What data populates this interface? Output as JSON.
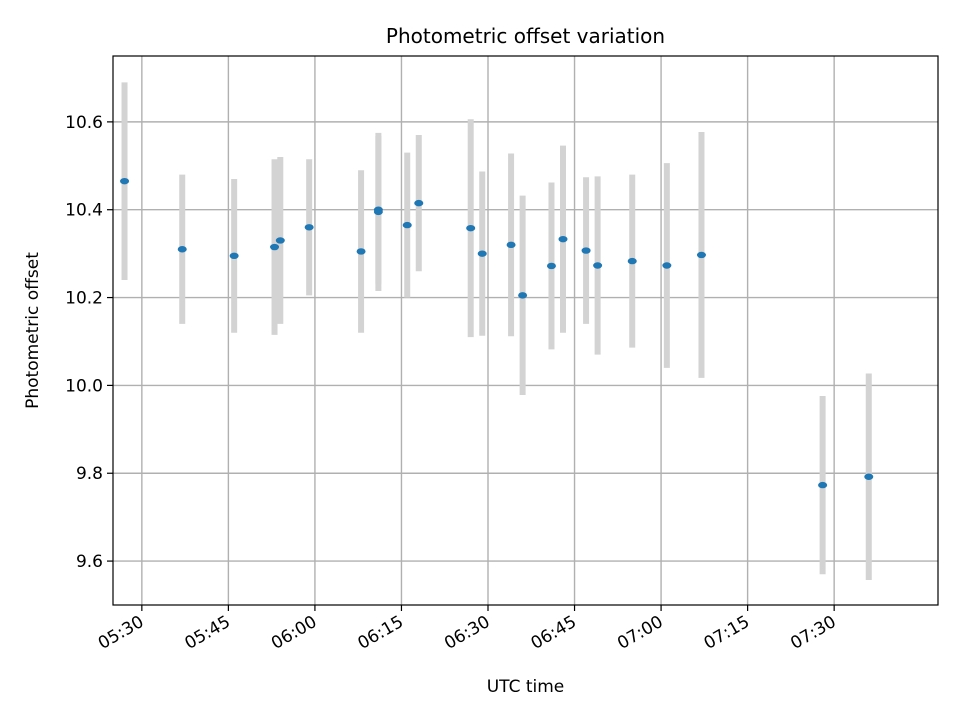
{
  "chart_data": {
    "type": "scatter",
    "title": "Photometric offset variation",
    "xlabel": "UTC time",
    "ylabel": "Photometric offset",
    "x_ticks": [
      "05:30",
      "05:45",
      "06:00",
      "06:15",
      "06:30",
      "06:45",
      "07:00",
      "07:15",
      "07:30"
    ],
    "y_ticks": [
      "9.6",
      "9.8",
      "10.0",
      "10.2",
      "10.4",
      "10.6"
    ],
    "xlim": [
      "05:25",
      "07:48"
    ],
    "ylim": [
      9.5,
      10.75
    ],
    "grid": true,
    "colors": {
      "marker": "#1f77b4",
      "errorbar": "#d3d3d3",
      "grid": "#b0b0b0"
    },
    "points": [
      {
        "x": "05:27",
        "y": 10.465,
        "err": 0.225
      },
      {
        "x": "05:37",
        "y": 10.31,
        "err": 0.17
      },
      {
        "x": "05:46",
        "y": 10.295,
        "err": 0.175
      },
      {
        "x": "05:53",
        "y": 10.315,
        "err": 0.2
      },
      {
        "x": "05:54",
        "y": 10.33,
        "err": 0.19
      },
      {
        "x": "05:59",
        "y": 10.36,
        "err": 0.155
      },
      {
        "x": "06:08",
        "y": 10.305,
        "err": 0.185
      },
      {
        "x": "06:11",
        "y": 10.395,
        "err": 0.18
      },
      {
        "x": "06:11",
        "y": 10.4,
        "err": 0.168
      },
      {
        "x": "06:16",
        "y": 10.365,
        "err": 0.165
      },
      {
        "x": "06:18",
        "y": 10.415,
        "err": 0.155
      },
      {
        "x": "06:27",
        "y": 10.358,
        "err": 0.248
      },
      {
        "x": "06:29",
        "y": 10.3,
        "err": 0.187
      },
      {
        "x": "06:34",
        "y": 10.32,
        "err": 0.208
      },
      {
        "x": "06:36",
        "y": 10.205,
        "err": 0.227
      },
      {
        "x": "06:41",
        "y": 10.272,
        "err": 0.19
      },
      {
        "x": "06:43",
        "y": 10.333,
        "err": 0.213
      },
      {
        "x": "06:47",
        "y": 10.307,
        "err": 0.167
      },
      {
        "x": "06:49",
        "y": 10.273,
        "err": 0.203
      },
      {
        "x": "06:55",
        "y": 10.283,
        "err": 0.197
      },
      {
        "x": "07:01",
        "y": 10.273,
        "err": 0.233
      },
      {
        "x": "07:07",
        "y": 10.297,
        "err": 0.28
      },
      {
        "x": "07:28",
        "y": 9.773,
        "err": 0.203
      },
      {
        "x": "07:36",
        "y": 9.792,
        "err": 0.235
      }
    ]
  }
}
